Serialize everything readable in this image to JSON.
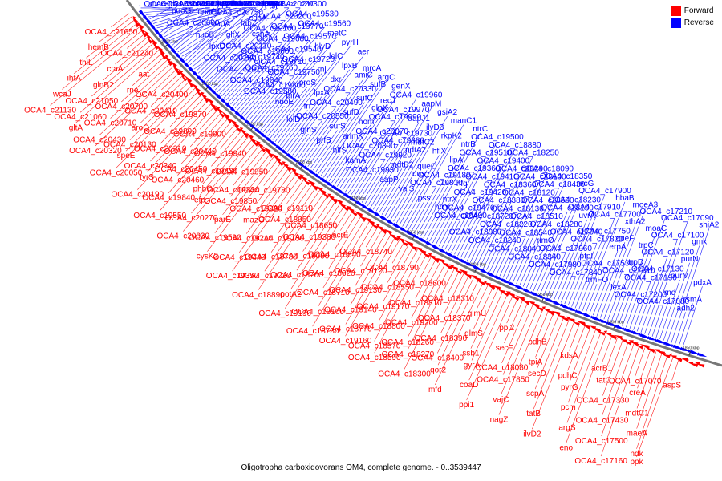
{
  "caption": "Oligotropha carboxidovorans OM4, complete genome. - 0..3539447",
  "legend": [
    {
      "label": "Forward",
      "color": "#ff0000"
    },
    {
      "label": "Reverse",
      "color": "#0000ff"
    }
  ],
  "colors": {
    "forward": "#ff0000",
    "reverse": "#0000ff",
    "backbone": "#777777"
  },
  "ticks": [
    "2300 kbp",
    "2250 kbp",
    "2200 kbp",
    "2150 kbp",
    "2100 kbp",
    "2050 kbp",
    "2000 kbp",
    "1950 kbp",
    "1900 kbp",
    "1850 kbp"
  ],
  "reverse_labels": [
    "mntH",
    "glyA",
    "OCA4_c21490",
    "OCA4_c21380",
    "hppA",
    "fabH1",
    "OCA4_c21230",
    "OCA4_c21040",
    "nuoF2",
    "nuoD",
    "lon",
    "nuoC",
    "nuoG",
    "nuoN",
    "nuoM",
    "OCA4_c20770",
    "OCA4_c20680",
    "OCA4_c20780",
    "OCA4_c20600",
    "dnaE1",
    "yaeT",
    "ttuC2",
    "OCA4_c21000",
    "clpX",
    "nuoB",
    "nuoA",
    "OCA4_c20750",
    "OCA4_c20760",
    "uppS",
    "rpsB",
    "lpxD",
    "gltX",
    "fabZ",
    "cdsA",
    "tsf",
    "OCA4_c20210",
    "OCA4_c20150",
    "OCA4_c20110",
    "cshA",
    "OCA4_c20100",
    "OCA4_c20200",
    "OCA4_c20300",
    "OCA4_c20170",
    "OCA4_c19740",
    "OCA4_c19600",
    "OCA4_c19680",
    "OCA4_c19770",
    "OCA4_c19530",
    "OCA4_c19640",
    "OCA4_c19760",
    "OCA4_c19710",
    "OCA4_c19540",
    "OCA4_c19570",
    "OCA4_c19560",
    "OCA4_c19580",
    "OCA4_c19800",
    "OCA4_c19750",
    "OCA4_c19720",
    "hlyD",
    "metC",
    "nuoE",
    "birA",
    "proS",
    "rnj",
    "lolC",
    "pyrH",
    "lolD",
    "frr",
    "lpxA",
    "dxr",
    "lpxB",
    "aer",
    "glnS",
    "OCA4_c20550",
    "OCA4_c20490",
    "OCA4_c20330",
    "amiC",
    "mrcA",
    "prfB",
    "sufS",
    "sufD",
    "sufC",
    "sufB",
    "argC",
    "nifS",
    "anmK",
    "hom",
    "glpX",
    "recJ",
    "genX",
    "kamA",
    "OCA4_c20390",
    "OCA4_c20070",
    "OCA4_c19990",
    "OCA4_c19970",
    "OCA4_c19960",
    "OCA4_c19930",
    "OCA4_c19920",
    "OCA4_c19880",
    "OCA4_c19730",
    "aapJ1",
    "aapM",
    "aapP",
    "mdtB2",
    "mdtA2",
    "mdtC2",
    "ilvD3",
    "gsiA2",
    "valS",
    "dus",
    "queC",
    "hflX",
    "rkpK2",
    "manC1",
    "pss",
    "OCA4_c19810",
    "OCA4_c19180",
    "lipA",
    "ntrB",
    "ntrC",
    "ntrY",
    "ntrX",
    "hfq",
    "OCA4_c19360",
    "OCA4_c19510",
    "OCA4_c19500",
    "OCA4_c19490",
    "OCA4_c19470",
    "OCA4_c19420",
    "OCA4_c19410",
    "OCA4_c19400",
    "OCA4_c18880",
    "OCA4_c18980",
    "OCA4_c18720",
    "OCA4_c18380",
    "OCA4_c18360",
    "OCA4_c18290",
    "OCA4_c18250",
    "OCA4_c18240",
    "OCA4_c18220",
    "OCA4_c18130",
    "OCA4_c18120",
    "OCA4_c18100",
    "OCA4_c18090",
    "OCA4_c18040",
    "OCA4_c18540",
    "OCA4_c18510",
    "OCA4_c18500",
    "OCA4_c18430",
    "OCA4_c18350",
    "OCA4_c18340",
    "rimO",
    "OCA4_c18280",
    "OCA4_c18190",
    "OCA4_c18230",
    "recG",
    "OCA4_c17980",
    "OCA4_c17960",
    "OCA4_c17940",
    "uvrA",
    "OCA4_c17910",
    "OCA4_c17900",
    "OCA4_c17840",
    "pfpI",
    "OCA4_c17820",
    "OCA4_c17750",
    "OCA4_c17700",
    "hbaB",
    "trmFO",
    "OCA4_c17530",
    "erpA",
    "queF",
    "xthA2",
    "moeA3",
    "lexA",
    "OCA4_c17310",
    "trpD",
    "trpC",
    "moaC",
    "OCA4_c17210",
    "OCA4_c17200",
    "OCA4_c17190",
    "OCA4_c17130",
    "OCA4_c17120",
    "OCA4_c17100",
    "OCA4_c17090",
    "OCA4_c17080",
    "rnd",
    "purM",
    "purN",
    "gmk",
    "shiA2",
    "adh2",
    "rsmA",
    "pdxA"
  ],
  "forward_labels": [
    "OCA4_c21650",
    "hemB",
    "thiL",
    "ihfA",
    "wcaJ",
    "OCA4_c21130",
    "OCA4_c21240",
    "ctaA",
    "glnB2",
    "OCA4_c21050",
    "OCA4_c21060",
    "gltA",
    "aat",
    "rne",
    "OCA4_c20700",
    "OCA4_c20710",
    "OCA4_c20430",
    "OCA4_c20320",
    "OCA4_c20400",
    "OCA4_c20410",
    "aroQ",
    "OCA4_c20130",
    "speE",
    "OCA4_c20050",
    "OCA4_c19870",
    "OCA4_c19890",
    "OCA4_c20310",
    "OCA4_c20340",
    "tyrS",
    "OCA4_c20190",
    "OCA4_c19900",
    "OCA4_c20440",
    "OCA4_c20450",
    "OCA4_c20460",
    "OCA4_c19840",
    "OCA4_c19550",
    "OCA4_c19940",
    "OCA4_c19430",
    "phbC",
    "efp",
    "OCA4_c20270",
    "OCA4_c20030",
    "OCA4_c19950",
    "OCA4_c19830",
    "OCA4_c19850",
    "parE",
    "OCA4_c19590",
    "cysK2",
    "OCA4_c19780",
    "OCA4_c19820",
    "mazG",
    "OCA4_c19210",
    "OCA4_c19440",
    "OCA4_c19350",
    "OCA4_c19110",
    "OCA4_c18950",
    "OCA4_c19150",
    "OCA4_c18780",
    "OCA4_c19220",
    "OCA4_c18890",
    "OCA4_c18650",
    "OCA4_c19380",
    "OCA4_c19090",
    "OCA4_c18700",
    "potA2",
    "OCA4_c19190",
    "acrE",
    "OCA4_c18840",
    "OCA4_c18620",
    "OCA4_c18710",
    "OCA4_c19100",
    "OCA4_c18730",
    "OCA4_c18740",
    "OCA4_c19120",
    "OCA4_c19130",
    "OCA4_c19140",
    "OCA4_c18770",
    "OCA4_c19160",
    "OCA4_c18790",
    "OCA4_c18550",
    "OCA4_c19170",
    "OCA4_c18800",
    "OCA4_c18570",
    "OCA4_c18590",
    "OCA4_c18600",
    "OCA4_c18810",
    "OCA4_c19200",
    "OCA4_c18260",
    "OCA4_c18270",
    "OCA4_c18300",
    "OCA4_c18310",
    "OCA4_c18370",
    "OCA4_c18390",
    "OCA4_c18400",
    "qor2",
    "mfd",
    "glmU",
    "glmS",
    "ssb1",
    "gyrA",
    "coaD",
    "ppi1",
    "ppi2",
    "secF",
    "OCA4_c18080",
    "OCA4_c17850",
    "vajC",
    "nagZ",
    "pdhB",
    "tpiA",
    "secD",
    "scpA",
    "tatB",
    "ilvD2",
    "kdsA",
    "pdhC",
    "pyrG",
    "pcm",
    "argS",
    "eno",
    "acrB1",
    "tatC",
    "OCA4_c17330",
    "OCA4_c17430",
    "OCA4_c17500",
    "OCA4_c17160",
    "OCA4_c17070",
    "creA",
    "mdtC1",
    "maeA",
    "ndk",
    "ppk",
    "aspS"
  ]
}
